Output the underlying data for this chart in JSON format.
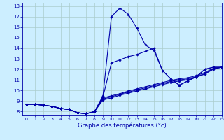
{
  "xlabel": "Graphe des températures (°c)",
  "bg_color": "#cceeff",
  "grid_color": "#aacccc",
  "line_color": "#0000aa",
  "xlim": [
    -0.5,
    23
  ],
  "ylim": [
    7.7,
    18.3
  ],
  "yticks": [
    8,
    9,
    10,
    11,
    12,
    13,
    14,
    15,
    16,
    17,
    18
  ],
  "xticks": [
    0,
    1,
    2,
    3,
    4,
    5,
    6,
    7,
    8,
    9,
    10,
    11,
    12,
    13,
    14,
    15,
    16,
    17,
    18,
    19,
    20,
    21,
    22,
    23
  ],
  "series": [
    {
      "x": [
        0,
        1,
        2,
        3,
        4,
        5,
        6,
        7,
        8,
        9,
        10,
        11,
        12,
        13,
        14,
        15,
        16,
        17,
        18,
        19,
        20,
        21,
        22,
        23
      ],
      "y": [
        8.7,
        8.7,
        8.6,
        8.5,
        8.3,
        8.2,
        7.9,
        7.8,
        8.0,
        9.5,
        17.0,
        17.8,
        17.2,
        15.9,
        14.3,
        13.8,
        11.9,
        11.1,
        10.5,
        10.9,
        11.3,
        12.0,
        12.2,
        12.2
      ]
    },
    {
      "x": [
        0,
        1,
        2,
        3,
        4,
        5,
        6,
        7,
        8,
        9,
        10,
        11,
        12,
        13,
        14,
        15,
        16,
        17,
        18,
        19,
        20,
        21,
        22,
        23
      ],
      "y": [
        8.7,
        8.7,
        8.6,
        8.5,
        8.3,
        8.2,
        7.9,
        7.8,
        8.0,
        9.4,
        12.6,
        12.9,
        13.2,
        13.4,
        13.7,
        14.0,
        11.9,
        11.1,
        10.5,
        10.9,
        11.3,
        12.0,
        12.2,
        12.2
      ]
    },
    {
      "x": [
        0,
        1,
        2,
        3,
        4,
        5,
        6,
        7,
        8,
        9,
        10,
        11,
        12,
        13,
        14,
        15,
        16,
        17,
        18,
        19,
        20,
        21,
        22,
        23
      ],
      "y": [
        8.7,
        8.7,
        8.6,
        8.5,
        8.3,
        8.2,
        7.9,
        7.8,
        8.0,
        9.3,
        9.5,
        9.7,
        9.95,
        10.15,
        10.35,
        10.55,
        10.75,
        10.95,
        11.1,
        11.2,
        11.4,
        11.7,
        12.1,
        12.2
      ]
    },
    {
      "x": [
        0,
        1,
        2,
        3,
        4,
        5,
        6,
        7,
        8,
        9,
        10,
        11,
        12,
        13,
        14,
        15,
        16,
        17,
        18,
        19,
        20,
        21,
        22,
        23
      ],
      "y": [
        8.7,
        8.7,
        8.6,
        8.5,
        8.3,
        8.2,
        7.9,
        7.8,
        8.0,
        9.2,
        9.4,
        9.65,
        9.85,
        10.05,
        10.25,
        10.45,
        10.65,
        10.85,
        11.0,
        11.1,
        11.3,
        11.6,
        12.05,
        12.2
      ]
    },
    {
      "x": [
        0,
        1,
        2,
        3,
        4,
        5,
        6,
        7,
        8,
        9,
        10,
        11,
        12,
        13,
        14,
        15,
        16,
        17,
        18,
        19,
        20,
        21,
        22,
        23
      ],
      "y": [
        8.7,
        8.7,
        8.6,
        8.5,
        8.3,
        8.2,
        7.9,
        7.8,
        8.0,
        9.1,
        9.3,
        9.55,
        9.75,
        9.95,
        10.15,
        10.35,
        10.55,
        10.75,
        10.9,
        11.0,
        11.25,
        11.55,
        12.0,
        12.2
      ]
    }
  ]
}
